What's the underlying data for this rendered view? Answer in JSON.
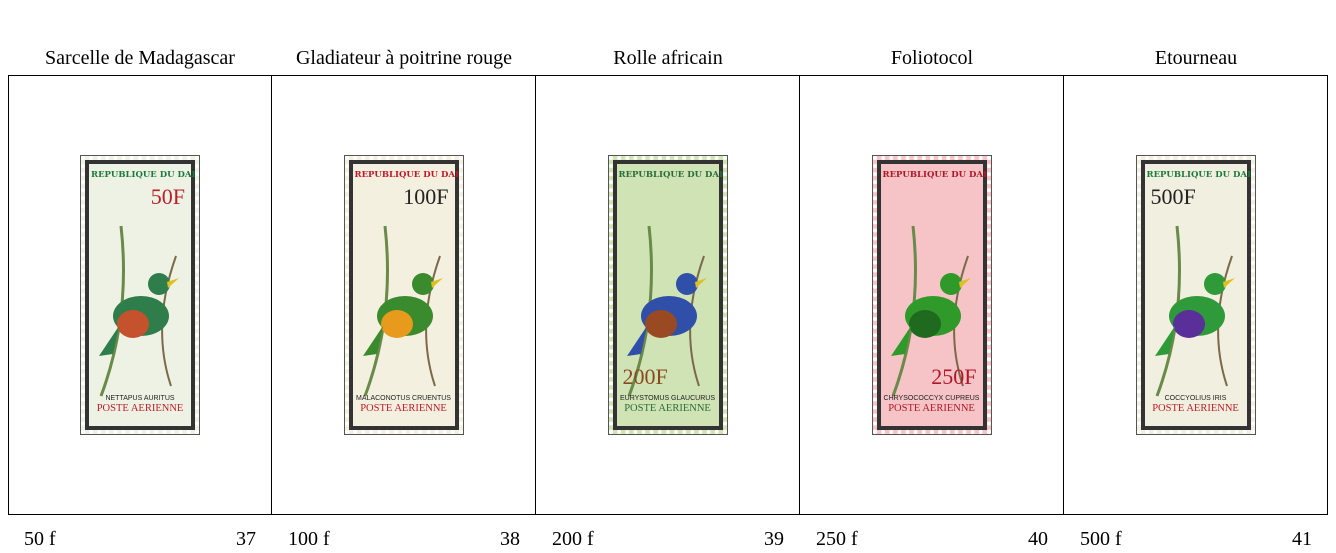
{
  "stamps": [
    {
      "title": "Sarcelle de Madagascar",
      "face_value": "50 f",
      "number": "37",
      "stamp": {
        "country": "REPUBLIQUE DU DAHOMEY",
        "denomination": "50F",
        "latin_name": "NETTAPUS AURITUS",
        "service": "POSTE AERIENNE"
      }
    },
    {
      "title": "Gladiateur à poitrine rouge",
      "face_value": "100 f",
      "number": "38",
      "stamp": {
        "country": "REPUBLIQUE DU DAHOMEY",
        "denomination": "100F",
        "latin_name": "MALACONOTUS CRUENTUS",
        "service": "POSTE AERIENNE"
      }
    },
    {
      "title": "Rolle africain",
      "face_value": "200 f",
      "number": "39",
      "stamp": {
        "country": "REPUBLIQUE DU DAHOMEY",
        "denomination": "200F",
        "latin_name": "EURYSTOMUS GLAUCURUS",
        "service": "POSTE AERIENNE"
      }
    },
    {
      "title": "Foliotocol",
      "face_value": "250 f",
      "number": "40",
      "stamp": {
        "country": "REPUBLIQUE DU DAHOMEY",
        "denomination": "250F",
        "latin_name": "CHRYSOCOCCYX CUPREUS",
        "service": "POSTE AERIENNE"
      }
    },
    {
      "title": "Etourneau",
      "face_value": "500 f",
      "number": "41",
      "stamp": {
        "country": "REPUBLIQUE DU DAHOMEY",
        "denomination": "500F",
        "latin_name": "COCCYOLIUS IRIS",
        "service": "POSTE AERIENNE"
      }
    }
  ]
}
